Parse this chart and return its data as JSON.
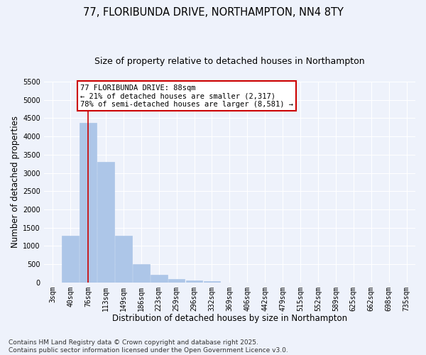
{
  "title_line1": "77, FLORIBUNDA DRIVE, NORTHAMPTON, NN4 8TY",
  "title_line2": "Size of property relative to detached houses in Northampton",
  "xlabel": "Distribution of detached houses by size in Northampton",
  "ylabel": "Number of detached properties",
  "categories": [
    "3sqm",
    "40sqm",
    "76sqm",
    "113sqm",
    "149sqm",
    "186sqm",
    "223sqm",
    "259sqm",
    "296sqm",
    "332sqm",
    "369sqm",
    "406sqm",
    "442sqm",
    "479sqm",
    "515sqm",
    "552sqm",
    "589sqm",
    "625sqm",
    "662sqm",
    "698sqm",
    "735sqm"
  ],
  "values": [
    0,
    1270,
    4380,
    3300,
    1280,
    500,
    210,
    85,
    55,
    30,
    0,
    0,
    0,
    0,
    0,
    0,
    0,
    0,
    0,
    0,
    0
  ],
  "bar_color": "#adc6e8",
  "bar_edge_color": "#adc6e8",
  "vline_x_idx": 2,
  "vline_color": "#cc0000",
  "ylim": [
    0,
    5500
  ],
  "yticks": [
    0,
    500,
    1000,
    1500,
    2000,
    2500,
    3000,
    3500,
    4000,
    4500,
    5000,
    5500
  ],
  "annotation_text": "77 FLORIBUNDA DRIVE: 88sqm\n← 21% of detached houses are smaller (2,317)\n78% of semi-detached houses are larger (8,581) →",
  "annotation_box_facecolor": "#ffffff",
  "annotation_box_edgecolor": "#cc0000",
  "background_color": "#eef2fb",
  "grid_color": "#ffffff",
  "footer_line1": "Contains HM Land Registry data © Crown copyright and database right 2025.",
  "footer_line2": "Contains public sector information licensed under the Open Government Licence v3.0.",
  "title_fontsize": 10.5,
  "subtitle_fontsize": 9,
  "axis_label_fontsize": 8.5,
  "tick_fontsize": 7,
  "annotation_fontsize": 7.5,
  "footer_fontsize": 6.5
}
